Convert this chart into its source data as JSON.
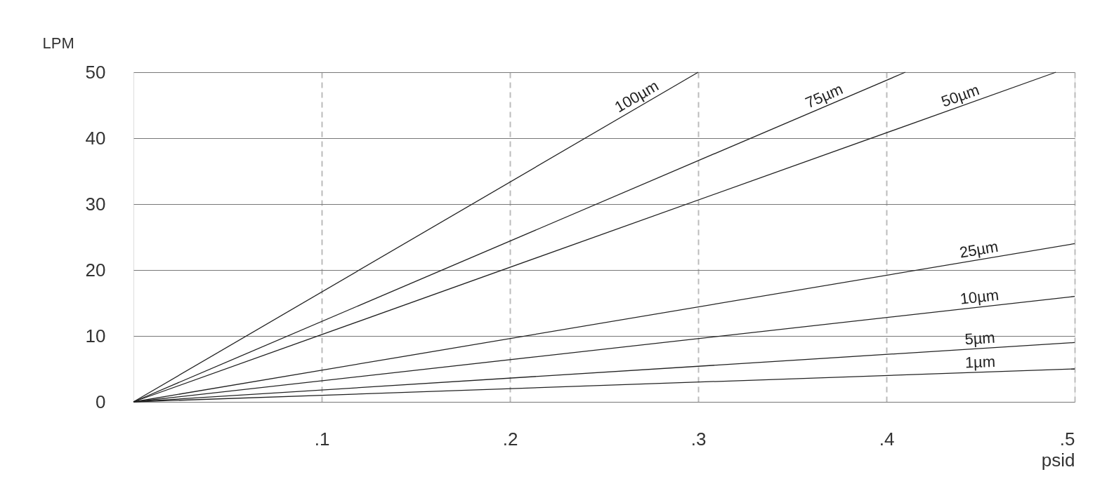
{
  "chart_data": {
    "type": "line",
    "ylabel": "LPM",
    "xlabel": "psid",
    "xlim": [
      0,
      0.5
    ],
    "ylim": [
      0,
      50
    ],
    "xticks": [
      {
        "value": 0.1,
        "label": ".1"
      },
      {
        "value": 0.2,
        "label": ".2"
      },
      {
        "value": 0.3,
        "label": ".3"
      },
      {
        "value": 0.4,
        "label": ".4"
      },
      {
        "value": 0.5,
        "label": ".5"
      }
    ],
    "yticks": [
      0,
      10,
      20,
      30,
      40,
      50
    ],
    "grid": true,
    "legend": false,
    "marker": "none",
    "line_style": "solid",
    "series": [
      {
        "name": "100µm",
        "color": "#222222",
        "x": [
          0,
          0.3
        ],
        "values": [
          0,
          50
        ]
      },
      {
        "name": "75µm",
        "color": "#222222",
        "x": [
          0,
          0.41
        ],
        "values": [
          0,
          50
        ]
      },
      {
        "name": "50µm",
        "color": "#222222",
        "x": [
          0,
          0.49
        ],
        "values": [
          0,
          50
        ]
      },
      {
        "name": "25µm",
        "color": "#222222",
        "x": [
          0,
          0.5
        ],
        "values": [
          0,
          24
        ]
      },
      {
        "name": "10µm",
        "color": "#222222",
        "x": [
          0,
          0.5
        ],
        "values": [
          0,
          16
        ]
      },
      {
        "name": "5µm",
        "color": "#222222",
        "x": [
          0,
          0.5
        ],
        "values": [
          0,
          9
        ]
      },
      {
        "name": "1µm",
        "color": "#222222",
        "x": [
          0,
          0.5
        ],
        "values": [
          0,
          5
        ]
      }
    ]
  }
}
